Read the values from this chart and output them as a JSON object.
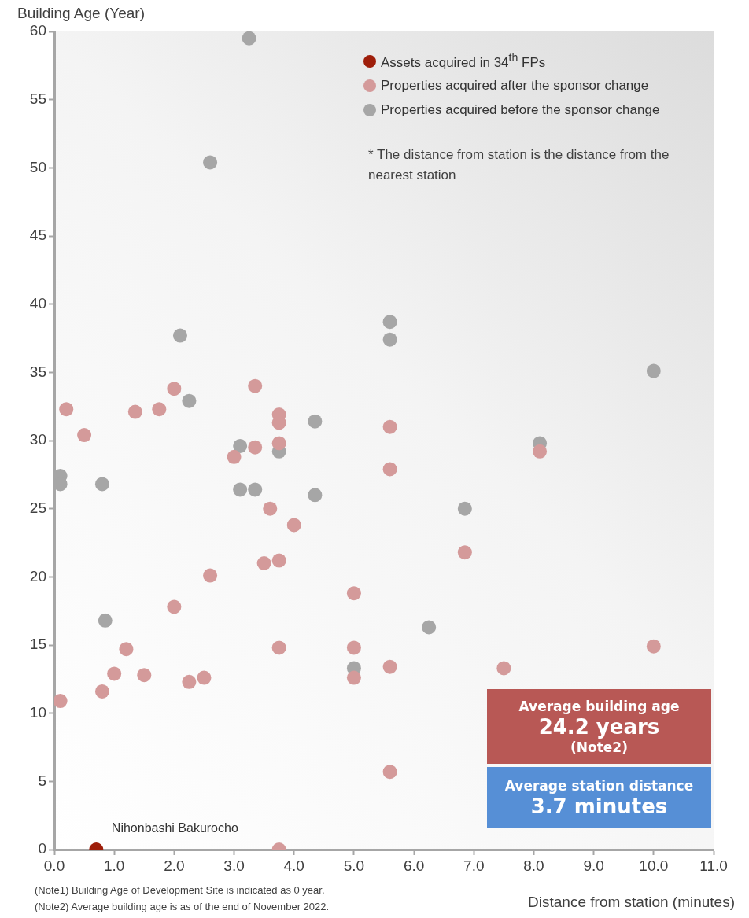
{
  "chart_data": {
    "type": "scatter",
    "xlabel": "Distance from station (minutes)",
    "ylabel": "Building Age (Year)",
    "xlim": [
      0,
      11
    ],
    "ylim": [
      0,
      60
    ],
    "xticks": [
      {
        "value": 0,
        "label": "0.0"
      },
      {
        "value": 1,
        "label": "1.0"
      },
      {
        "value": 2,
        "label": "2.0"
      },
      {
        "value": 3,
        "label": "3.0"
      },
      {
        "value": 4,
        "label": "4.0"
      },
      {
        "value": 5,
        "label": "5.0"
      },
      {
        "value": 6,
        "label": "6.0"
      },
      {
        "value": 7,
        "label": "7.0"
      },
      {
        "value": 8,
        "label": "8.0"
      },
      {
        "value": 9,
        "label": "9.0"
      },
      {
        "value": 10,
        "label": "10.0"
      },
      {
        "value": 11,
        "label": "11.0"
      }
    ],
    "yticks": [
      0,
      5,
      10,
      15,
      20,
      25,
      30,
      35,
      40,
      45,
      50,
      55,
      60
    ],
    "grid": false,
    "legend": "top right",
    "marker": "circle",
    "series": [
      {
        "name": "Assets acquired in 34$^{th}$ FPs",
        "color": "#9e1e0a",
        "x": [
          0.7
        ],
        "values": [
          0
        ]
      },
      {
        "name": "Properties acquired after the sponsor change",
        "color": "#d49a9a",
        "x": [
          0.2,
          0.5,
          0.1,
          0.8,
          1.0,
          1.2,
          1.35,
          1.5,
          1.75,
          2.0,
          2.0,
          2.25,
          2.5,
          2.6,
          3.0,
          3.35,
          3.35,
          3.6,
          3.5,
          3.75,
          3.75,
          3.75,
          3.75,
          3.75,
          3.75,
          4.0,
          5.0,
          5.0,
          5.0,
          5.6,
          5.6,
          5.6,
          5.6,
          6.85,
          7.5,
          8.1,
          10.0
        ],
        "values": [
          32.3,
          30.4,
          10.9,
          11.6,
          12.9,
          14.7,
          32.1,
          12.8,
          32.3,
          33.8,
          17.8,
          12.3,
          12.6,
          20.1,
          28.8,
          34.0,
          29.5,
          25.0,
          21.0,
          31.9,
          31.3,
          29.8,
          21.2,
          14.8,
          0,
          23.8,
          18.8,
          14.8,
          12.6,
          31.0,
          27.9,
          13.4,
          5.7,
          21.8,
          13.3,
          29.2,
          14.9
        ]
      },
      {
        "name": "Properties acquired before the sponsor change",
        "color": "#a6a6a6",
        "x": [
          3.25,
          2.6,
          2.1,
          2.25,
          0.1,
          0.1,
          0.8,
          0.85,
          3.1,
          3.1,
          3.35,
          3.75,
          4.35,
          4.35,
          5.6,
          5.6,
          6.25,
          5.0,
          6.85,
          8.1,
          10.0
        ],
        "values": [
          59.5,
          50.4,
          37.7,
          32.9,
          27.4,
          26.8,
          26.8,
          16.8,
          29.6,
          26.4,
          26.4,
          29.2,
          31.4,
          26.0,
          38.7,
          37.4,
          16.3,
          13.3,
          25.0,
          29.8,
          35.1
        ]
      }
    ],
    "annotations": [
      {
        "text": "Nihonbashi Bakurocho",
        "x": 0.7,
        "y": 0
      },
      "* The distance from station is the distance from the\nnearest station",
      "Average building age\n24.2 years\n(Note2)",
      "Average station distance\n3.7 minutes",
      "(Note1) Building Age of  Development Site is indicated as 0 year.",
      "(Note2) Average building age is as of the end of November 2022."
    ]
  }
}
